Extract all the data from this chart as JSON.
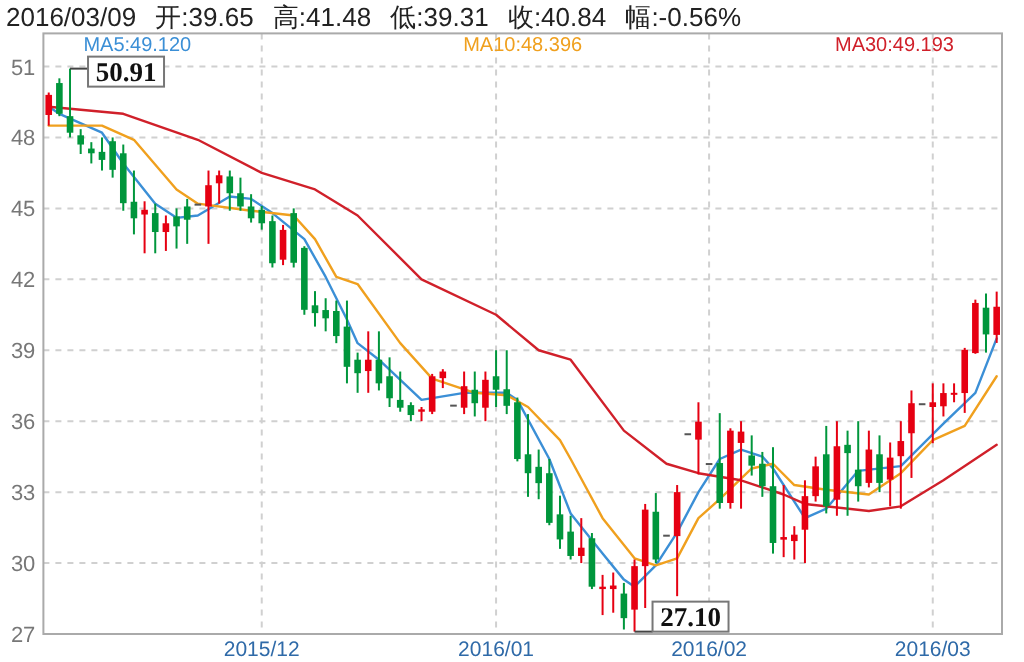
{
  "chart_data": {
    "type": "candlestick",
    "title": "2016/03/09 开:39.65 高:41.48 低:39.31 收:40.84 幅:-0.56%",
    "categories": [
      null,
      null,
      null,
      null,
      null,
      null,
      null,
      null,
      null,
      null,
      null,
      null,
      null,
      null,
      null,
      null,
      null,
      null,
      null,
      null,
      "2015/12",
      null,
      null,
      null,
      null,
      null,
      null,
      null,
      null,
      null,
      null,
      null,
      null,
      null,
      null,
      null,
      null,
      null,
      null,
      null,
      null,
      null,
      "2016/01",
      null,
      null,
      null,
      null,
      null,
      null,
      null,
      null,
      null,
      null,
      null,
      null,
      null,
      null,
      null,
      null,
      null,
      null,
      null,
      "2016/02",
      null,
      null,
      null,
      null,
      null,
      null,
      null,
      null,
      null,
      null,
      null,
      null,
      null,
      null,
      null,
      null,
      null,
      null,
      null,
      null,
      "2016/03",
      null,
      null,
      null,
      null,
      null,
      null
    ],
    "ohlc": [
      [
        48.95,
        49.9,
        48.5,
        49.8
      ],
      [
        50.3,
        50.5,
        48.9,
        49.0
      ],
      [
        48.9,
        50.91,
        48.0,
        48.2
      ],
      [
        48.09,
        48.35,
        47.3,
        47.7
      ],
      [
        47.53,
        47.8,
        46.9,
        47.33
      ],
      [
        47.39,
        48.0,
        46.6,
        47.05
      ],
      [
        47.84,
        48.0,
        46.3,
        46.63
      ],
      [
        47.33,
        47.7,
        44.9,
        45.22
      ],
      [
        45.28,
        46.6,
        43.9,
        44.58
      ],
      [
        44.74,
        45.3,
        43.1,
        44.94
      ],
      [
        44.8,
        45.2,
        43.1,
        44.0
      ],
      [
        44.0,
        44.7,
        43.2,
        44.37
      ],
      [
        44.66,
        45.0,
        43.3,
        44.24
      ],
      [
        45.08,
        45.4,
        43.5,
        44.52
      ],
      [
        45.2,
        45.2,
        45.2,
        45.2
      ],
      [
        45.08,
        46.6,
        43.5,
        45.98
      ],
      [
        46.06,
        46.6,
        45.2,
        46.4
      ],
      [
        46.35,
        46.6,
        44.9,
        45.64
      ],
      [
        45.64,
        46.3,
        44.9,
        45.08
      ],
      [
        45.08,
        45.6,
        44.4,
        44.58
      ],
      [
        44.94,
        45.1,
        44.1,
        44.37
      ],
      [
        44.46,
        44.7,
        42.5,
        42.68
      ],
      [
        42.83,
        44.3,
        42.6,
        44.09
      ],
      [
        44.8,
        45.0,
        42.5,
        42.7
      ],
      [
        43.33,
        43.4,
        40.5,
        40.71
      ],
      [
        40.9,
        41.5,
        40.0,
        40.57
      ],
      [
        40.7,
        41.2,
        39.8,
        40.35
      ],
      [
        40.66,
        41.1,
        39.3,
        39.6
      ],
      [
        40.0,
        41.1,
        37.6,
        38.3
      ],
      [
        38.6,
        38.9,
        37.2,
        38.03
      ],
      [
        38.12,
        39.8,
        37.2,
        38.6
      ],
      [
        38.6,
        39.8,
        37.3,
        37.6
      ],
      [
        37.9,
        38.7,
        36.6,
        36.97
      ],
      [
        36.9,
        38.1,
        36.4,
        36.57
      ],
      [
        36.68,
        36.8,
        36.0,
        36.26
      ],
      [
        36.4,
        36.6,
        36.0,
        36.5
      ],
      [
        36.4,
        38.0,
        36.3,
        37.9
      ],
      [
        37.82,
        38.2,
        37.4,
        38.1
      ],
      [
        36.7,
        36.7,
        36.7,
        36.7
      ],
      [
        36.57,
        38.1,
        36.3,
        37.48
      ],
      [
        37.33,
        38.1,
        36.2,
        36.76
      ],
      [
        36.57,
        38.1,
        36.0,
        37.75
      ],
      [
        37.9,
        39.0,
        36.6,
        37.33
      ],
      [
        37.35,
        39.0,
        36.3,
        36.65
      ],
      [
        36.8,
        37.0,
        34.3,
        34.4
      ],
      [
        34.6,
        36.3,
        32.8,
        33.8
      ],
      [
        34.07,
        34.8,
        32.7,
        33.38
      ],
      [
        33.8,
        34.4,
        31.6,
        31.7
      ],
      [
        32.06,
        32.85,
        30.6,
        31.0
      ],
      [
        31.33,
        32.0,
        30.15,
        30.3
      ],
      [
        30.3,
        31.9,
        30.0,
        30.65
      ],
      [
        31.05,
        31.27,
        28.9,
        29.0
      ],
      [
        28.9,
        29.5,
        27.8,
        29.0
      ],
      [
        28.9,
        29.6,
        27.9,
        29.05
      ],
      [
        28.71,
        29.16,
        27.19,
        27.67
      ],
      [
        28.03,
        30.15,
        27.1,
        29.87
      ],
      [
        29.87,
        32.5,
        28.1,
        32.26
      ],
      [
        32.17,
        32.96,
        30.0,
        30.15
      ],
      [
        31.2,
        31.2,
        31.2,
        31.2
      ],
      [
        31.14,
        33.3,
        28.6,
        33.0
      ],
      [
        35.49,
        35.49,
        35.49,
        35.49
      ],
      [
        35.22,
        36.8,
        33.75,
        35.98
      ],
      [
        34.23,
        34.23,
        34.23,
        34.23
      ],
      [
        34.23,
        36.34,
        32.3,
        32.54
      ],
      [
        32.54,
        35.7,
        32.3,
        35.6
      ],
      [
        35.08,
        36.0,
        32.3,
        35.56
      ],
      [
        34.55,
        35.4,
        33.7,
        34.12
      ],
      [
        34.2,
        34.7,
        32.8,
        33.25
      ],
      [
        33.25,
        34.9,
        30.4,
        30.85
      ],
      [
        30.99,
        33.3,
        30.25,
        31.1
      ],
      [
        30.93,
        31.56,
        30.15,
        31.2
      ],
      [
        31.41,
        33.5,
        30.0,
        32.83
      ],
      [
        32.83,
        34.5,
        32.6,
        34.09
      ],
      [
        34.6,
        35.8,
        32.1,
        32.4
      ],
      [
        32.68,
        36.0,
        32.0,
        34.94
      ],
      [
        35.0,
        35.6,
        32.0,
        34.65
      ],
      [
        33.95,
        36.0,
        32.6,
        33.25
      ],
      [
        33.39,
        35.6,
        33.2,
        34.8
      ],
      [
        34.6,
        35.4,
        33.0,
        33.39
      ],
      [
        33.53,
        35.1,
        32.4,
        34.46
      ],
      [
        34.52,
        36.0,
        32.3,
        35.16
      ],
      [
        35.49,
        37.3,
        33.6,
        36.76
      ],
      [
        36.76,
        36.76,
        36.76,
        36.76
      ],
      [
        36.6,
        37.6,
        35.07,
        36.8
      ],
      [
        36.63,
        37.6,
        36.2,
        37.19
      ],
      [
        37.15,
        37.6,
        36.8,
        37.2
      ],
      [
        37.19,
        39.1,
        36.35,
        39.02
      ],
      [
        38.88,
        41.14,
        38.85,
        41.0
      ],
      [
        40.8,
        41.4,
        38.9,
        39.67
      ],
      [
        39.65,
        41.48,
        39.31,
        40.84
      ]
    ],
    "colors": [
      "#e60012",
      "#00963c",
      "#00963c",
      "#00963c",
      "#00963c",
      "#00963c",
      "#00963c",
      "#00963c",
      "#00963c",
      "#e60012",
      "#00963c",
      "#e60012",
      "#00963c",
      "#00963c",
      "#555555",
      "#e60012",
      "#e60012",
      "#00963c",
      "#00963c",
      "#00963c",
      "#00963c",
      "#00963c",
      "#e60012",
      "#00963c",
      "#00963c",
      "#00963c",
      "#00963c",
      "#00963c",
      "#00963c",
      "#00963c",
      "#e60012",
      "#00963c",
      "#00963c",
      "#00963c",
      "#00963c",
      "#e60012",
      "#e60012",
      "#e60012",
      "#555555",
      "#e60012",
      "#00963c",
      "#e60012",
      "#00963c",
      "#00963c",
      "#00963c",
      "#00963c",
      "#00963c",
      "#00963c",
      "#00963c",
      "#00963c",
      "#e60012",
      "#00963c",
      "#e60012",
      "#e60012",
      "#00963c",
      "#e60012",
      "#e60012",
      "#00963c",
      "#555555",
      "#e60012",
      "#555555",
      "#e60012",
      "#555555",
      "#00963c",
      "#e60012",
      "#e60012",
      "#00963c",
      "#00963c",
      "#00963c",
      "#e60012",
      "#e60012",
      "#e60012",
      "#e60012",
      "#00963c",
      "#e60012",
      "#00963c",
      "#00963c",
      "#e60012",
      "#00963c",
      "#e60012",
      "#e60012",
      "#e60012",
      "#555555",
      "#e60012",
      "#e60012",
      "#e60012",
      "#e60012",
      "#e60012",
      "#00963c",
      "#e60012"
    ],
    "series": [
      {
        "name": "MA5:49.120",
        "type": "line",
        "color": "#3b8fd6",
        "values": [
          49.3,
          49.0,
          null,
          null,
          null,
          48.2,
          null,
          46.9,
          null,
          null,
          45.2,
          null,
          44.6,
          null,
          44.7,
          null,
          null,
          45.5,
          null,
          45.4,
          null,
          44.8,
          null,
          null,
          43.7,
          null,
          42.1,
          null,
          40.3,
          39.3,
          null,
          38.6,
          null,
          null,
          null,
          36.9,
          null,
          null,
          null,
          37.2,
          null,
          null,
          null,
          37.2,
          36.9,
          null,
          null,
          34.4,
          null,
          32.1,
          null,
          null,
          30.4,
          null,
          29.3,
          29.0,
          null,
          29.9,
          null,
          31.3,
          null,
          33.0,
          null,
          34.4,
          null,
          34.8,
          null,
          34.5,
          34.0,
          null,
          null,
          31.9,
          null,
          32.3,
          null,
          null,
          33.9,
          null,
          null,
          null,
          34.1,
          null,
          35.0,
          null,
          35.9,
          null,
          null,
          37.2,
          null,
          39.5
        ]
      },
      {
        "name": "MA10:48.396",
        "type": "line",
        "color": "#f0a01e",
        "values": [
          48.5,
          null,
          null,
          null,
          null,
          48.5,
          null,
          null,
          47.9,
          null,
          null,
          null,
          45.8,
          null,
          45.2,
          null,
          null,
          null,
          null,
          44.9,
          null,
          null,
          null,
          44.7,
          null,
          43.7,
          null,
          42.1,
          null,
          41.8,
          null,
          null,
          null,
          39.3,
          null,
          null,
          37.8,
          null,
          null,
          null,
          37.2,
          null,
          null,
          37.1,
          null,
          36.6,
          null,
          null,
          35.2,
          34.4,
          null,
          null,
          31.9,
          null,
          null,
          30.2,
          null,
          29.9,
          null,
          30.2,
          null,
          31.9,
          null,
          32.7,
          null,
          null,
          34.0,
          null,
          34.2,
          null,
          33.3,
          null,
          null,
          33.1,
          null,
          null,
          null,
          32.9,
          null,
          null,
          33.8,
          null,
          null,
          35.2,
          null,
          null,
          35.8,
          null,
          null,
          37.9
        ]
      },
      {
        "name": "MA30:49.193",
        "type": "line",
        "color": "#d0202a",
        "values": [
          49.3,
          null,
          null,
          null,
          null,
          null,
          null,
          49.0,
          null,
          null,
          null,
          null,
          null,
          null,
          47.9,
          null,
          null,
          null,
          null,
          null,
          46.5,
          null,
          null,
          null,
          null,
          45.8,
          null,
          null,
          null,
          44.7,
          null,
          null,
          null,
          null,
          null,
          42.0,
          null,
          null,
          null,
          null,
          null,
          null,
          40.5,
          null,
          null,
          null,
          39.0,
          null,
          null,
          38.6,
          null,
          null,
          null,
          null,
          35.6,
          null,
          null,
          null,
          34.2,
          null,
          null,
          33.8,
          null,
          null,
          null,
          33.5,
          null,
          null,
          null,
          32.9,
          null,
          32.5,
          null,
          null,
          null,
          null,
          null,
          32.2,
          null,
          null,
          32.4,
          null,
          null,
          null,
          33.5,
          null,
          null,
          null,
          null,
          35.0
        ]
      }
    ],
    "ylim": [
      27,
      52.4
    ],
    "yticks": [
      27,
      30,
      33,
      36,
      39,
      42,
      45,
      48,
      51
    ],
    "grid": true,
    "legend": "top",
    "annotations": [
      {
        "text": "50.91",
        "y": 50.91
      },
      "27.10"
    ]
  }
}
